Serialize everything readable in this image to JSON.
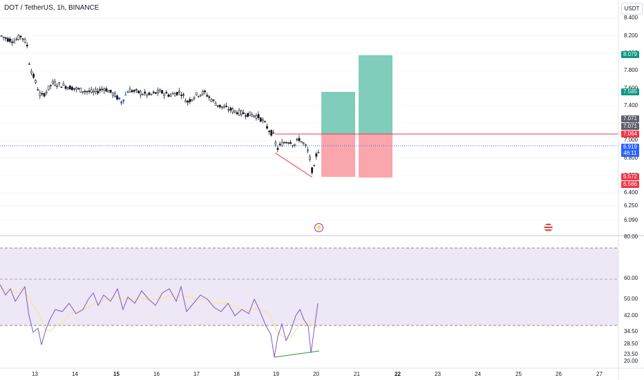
{
  "header": {
    "title": "DOT / TetherUS, 1h, BINANCE",
    "currency": "USDT"
  },
  "price_axis": {
    "ticks": [
      "8.400",
      "8.200",
      "8.000",
      "7.800",
      "7.600",
      "7.400",
      "7.200",
      "7.000",
      "6.800",
      "6.600",
      "6.400",
      "6.250",
      "6.090"
    ],
    "badges": [
      {
        "text": "8.079",
        "color": "#089981"
      },
      {
        "text": "7.585",
        "color": "#089981"
      },
      {
        "text": "7.071",
        "color": "#5d606b"
      },
      {
        "text": "7.071",
        "color": "#5d606b"
      },
      {
        "text": "7.064",
        "color": "#f23645"
      },
      {
        "text": "6.919",
        "color": "#2962ff"
      },
      {
        "text": "46:11",
        "color": "#2962ff"
      },
      {
        "text": "6.572",
        "color": "#f23645"
      },
      {
        "text": "6.566",
        "color": "#f23645"
      }
    ]
  },
  "rsi_axis": {
    "ticks": [
      "80.00",
      "60.00",
      "50.00",
      "42.00",
      "34.50",
      "28.50",
      "23.50",
      "20.00"
    ]
  },
  "time_axis": {
    "ticks": [
      "13",
      "14",
      "15",
      "16",
      "17",
      "18",
      "19",
      "20",
      "21",
      "22",
      "23",
      "24",
      "25",
      "26",
      "27"
    ]
  },
  "events": [
    {
      "icon": "lightning-icon"
    },
    {
      "icon": "us-flag-icon"
    }
  ],
  "colors": {
    "candle": "#131722",
    "last_price_line": "#2962ff",
    "entry_line": "#f23645",
    "profit_zone": "#7fcdba",
    "loss_zone": "#f9a7ad",
    "rsi_line": "#7e57c2",
    "rsi_ma": "#f5e7a6",
    "rsi_band": "#ede7f6",
    "divergence_price": "#f23645",
    "divergence_rsi": "#4caf50"
  },
  "chart_data": {
    "type": "candlestick",
    "symbol": "DOT / TetherUS",
    "interval": "1h",
    "exchange": "BINANCE",
    "price_range": [
      6.0,
      8.45
    ],
    "last_price": 6.919,
    "countdown": "46:11",
    "position": {
      "entry": 7.064,
      "stop": 6.572,
      "target_1": 7.585,
      "target_2": 8.079
    },
    "price_path": [
      [
        0,
        8.2
      ],
      [
        10,
        8.16
      ],
      [
        20,
        8.14
      ],
      [
        30,
        8.2
      ],
      [
        38,
        8.1
      ],
      [
        42,
        7.85
      ],
      [
        50,
        7.68
      ],
      [
        58,
        7.5
      ],
      [
        65,
        7.55
      ],
      [
        75,
        7.66
      ],
      [
        90,
        7.63
      ],
      [
        105,
        7.6
      ],
      [
        120,
        7.57
      ],
      [
        135,
        7.55
      ],
      [
        150,
        7.6
      ],
      [
        165,
        7.52
      ],
      [
        175,
        7.44
      ],
      [
        185,
        7.58
      ],
      [
        200,
        7.55
      ],
      [
        215,
        7.52
      ],
      [
        230,
        7.56
      ],
      [
        245,
        7.52
      ],
      [
        260,
        7.56
      ],
      [
        270,
        7.44
      ],
      [
        282,
        7.52
      ],
      [
        295,
        7.55
      ],
      [
        305,
        7.47
      ],
      [
        315,
        7.4
      ],
      [
        330,
        7.36
      ],
      [
        345,
        7.32
      ],
      [
        360,
        7.3
      ],
      [
        372,
        7.28
      ],
      [
        380,
        7.22
      ],
      [
        388,
        7.12
      ],
      [
        395,
        7.06
      ],
      [
        400,
        6.9
      ],
      [
        405,
        6.95
      ],
      [
        410,
        6.98
      ],
      [
        418,
        7.0
      ],
      [
        425,
        6.95
      ],
      [
        432,
        7.02
      ],
      [
        440,
        6.95
      ],
      [
        446,
        6.85
      ],
      [
        452,
        6.6
      ],
      [
        456,
        6.82
      ],
      [
        462,
        6.92
      ]
    ],
    "price_divergence": [
      [
        398,
        6.86
      ],
      [
        452,
        6.58
      ]
    ],
    "rsi_range": [
      20,
      80
    ],
    "rsi_bands": [
      30,
      50,
      70
    ],
    "rsi_values": [
      [
        0,
        57
      ],
      [
        8,
        52
      ],
      [
        15,
        55
      ],
      [
        22,
        49
      ],
      [
        30,
        53
      ],
      [
        36,
        56
      ],
      [
        42,
        42
      ],
      [
        48,
        34
      ],
      [
        55,
        36
      ],
      [
        60,
        28
      ],
      [
        66,
        35
      ],
      [
        72,
        40
      ],
      [
        80,
        45
      ],
      [
        90,
        44
      ],
      [
        100,
        48
      ],
      [
        110,
        43
      ],
      [
        120,
        45
      ],
      [
        128,
        50
      ],
      [
        135,
        53
      ],
      [
        142,
        47
      ],
      [
        150,
        52
      ],
      [
        160,
        49
      ],
      [
        170,
        55
      ],
      [
        178,
        45
      ],
      [
        185,
        51
      ],
      [
        195,
        48
      ],
      [
        205,
        54
      ],
      [
        215,
        50
      ],
      [
        225,
        47
      ],
      [
        235,
        53
      ],
      [
        245,
        55
      ],
      [
        255,
        49
      ],
      [
        262,
        56
      ],
      [
        270,
        44
      ],
      [
        280,
        48
      ],
      [
        290,
        52
      ],
      [
        300,
        50
      ],
      [
        310,
        46
      ],
      [
        320,
        44
      ],
      [
        330,
        48
      ],
      [
        340,
        42
      ],
      [
        350,
        45
      ],
      [
        360,
        43
      ],
      [
        368,
        50
      ],
      [
        375,
        45
      ],
      [
        385,
        37
      ],
      [
        392,
        33
      ],
      [
        397,
        22
      ],
      [
        402,
        32
      ],
      [
        408,
        38
      ],
      [
        414,
        30
      ],
      [
        420,
        34
      ],
      [
        428,
        42
      ],
      [
        434,
        45
      ],
      [
        440,
        40
      ],
      [
        446,
        37
      ],
      [
        450,
        24
      ],
      [
        455,
        36
      ],
      [
        460,
        48
      ]
    ],
    "rsi_divergence": [
      [
        397,
        22
      ],
      [
        462,
        25
      ]
    ]
  }
}
